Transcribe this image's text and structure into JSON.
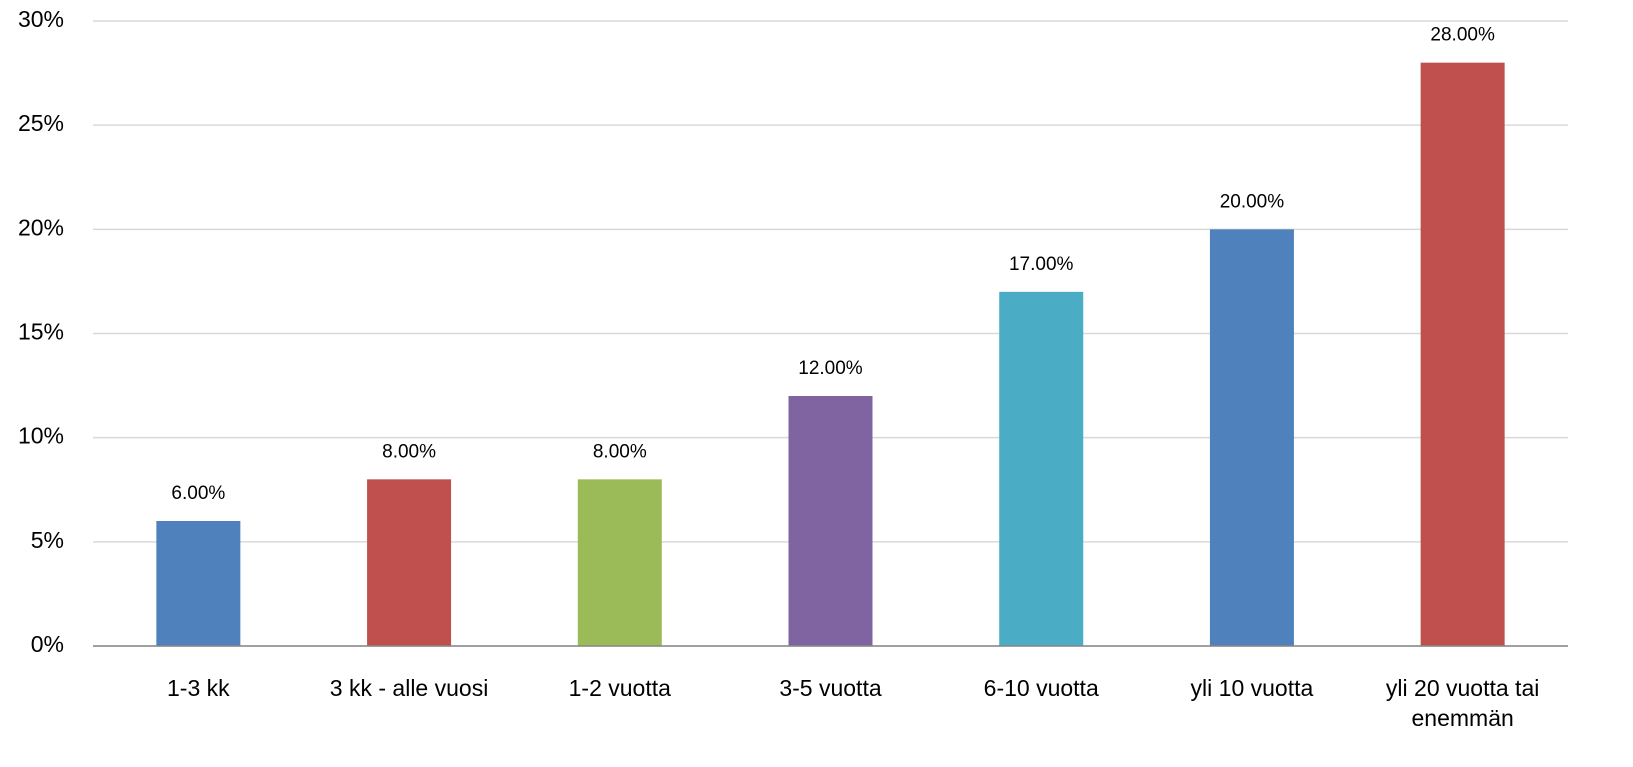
{
  "chart_data": {
    "type": "bar",
    "categories": [
      "1-3 kk",
      "3 kk - alle vuosi",
      "1-2 vuotta",
      "3-5 vuotta",
      "6-10 vuotta",
      "yli 10 vuotta",
      "yli 20 vuotta tai enemmän"
    ],
    "values": [
      6,
      8,
      8,
      12,
      17,
      20,
      28
    ],
    "value_labels": [
      "6.00%",
      "8.00%",
      "8.00%",
      "12.00%",
      "17.00%",
      "20.00%",
      "28.00%"
    ],
    "colors": [
      "#4f81bd",
      "#c0504d",
      "#9bbb59",
      "#8064a2",
      "#4bacc6",
      "#4f81bd",
      "#c0504d"
    ],
    "ylim": [
      0,
      30
    ],
    "yticks": [
      {
        "value": 0,
        "label": "0%"
      },
      {
        "value": 5,
        "label": "5%"
      },
      {
        "value": 10,
        "label": "10%"
      },
      {
        "value": 15,
        "label": "15%"
      },
      {
        "value": 20,
        "label": "20%"
      },
      {
        "value": 25,
        "label": "25%"
      },
      {
        "value": 30,
        "label": "30%"
      }
    ],
    "grid": true
  }
}
